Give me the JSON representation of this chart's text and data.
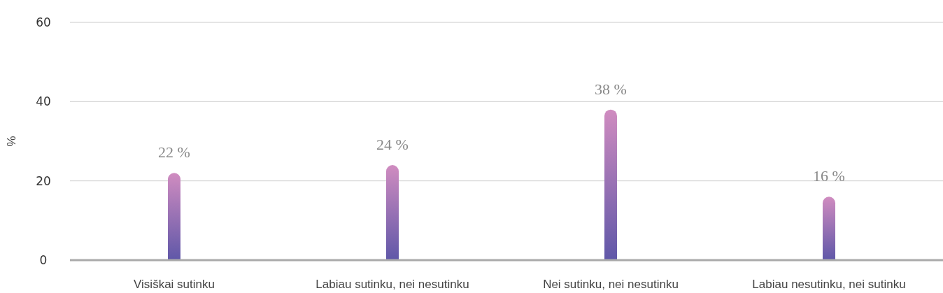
{
  "chart_data": {
    "type": "bar",
    "ylabel": "%",
    "categories": [
      "Visiškai sutinku",
      "Labiau sutinku, nei nesutinku",
      "Nei sutinku, nei nesutinku",
      "Labiau nesutinku, nei sutinku"
    ],
    "values": [
      22,
      24,
      38,
      16
    ],
    "color": "#d08cc0",
    "value_labels": [
      "22 %",
      "24 %",
      "38 %",
      "16 %"
    ],
    "ylim": [
      0,
      60
    ],
    "yticks": [
      0,
      20,
      40,
      60
    ],
    "grid": "y"
  }
}
